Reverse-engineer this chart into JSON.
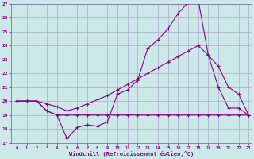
{
  "xlabel": "Windchill (Refroidissement éolien,°C)",
  "background_color": "#cce8e8",
  "line_color": "#880088",
  "grid_color": "#aaaacc",
  "xmin": 0,
  "xmax": 23,
  "ymin": 17,
  "ymax": 27,
  "s1_x": [
    0,
    1,
    2,
    3,
    4,
    5,
    6,
    7,
    8,
    9,
    10,
    11,
    12,
    13,
    14,
    15,
    16,
    17,
    18,
    19,
    20,
    21,
    22,
    23
  ],
  "s1_y": [
    20.0,
    20.0,
    20.0,
    19.3,
    19.0,
    17.3,
    18.1,
    18.3,
    18.2,
    18.5,
    20.5,
    20.8,
    21.5,
    23.8,
    24.4,
    25.2,
    26.3,
    27.1,
    27.3,
    23.3,
    21.0,
    19.5,
    19.5,
    19.0
  ],
  "s2_x": [
    0,
    1,
    2,
    3,
    4,
    5,
    6,
    7,
    8,
    9,
    10,
    11,
    12,
    13,
    14,
    15,
    16,
    17,
    18,
    19,
    20,
    21,
    22,
    23
  ],
  "s2_y": [
    20.0,
    20.0,
    20.0,
    19.3,
    19.0,
    19.0,
    19.0,
    19.0,
    19.0,
    19.0,
    19.0,
    19.0,
    19.0,
    19.0,
    19.0,
    19.0,
    19.0,
    19.0,
    19.0,
    19.0,
    19.0,
    19.0,
    19.0,
    19.0
  ],
  "s3_x": [
    0,
    1,
    2,
    3,
    4,
    5,
    6,
    7,
    8,
    9,
    10,
    11,
    12,
    13,
    14,
    15,
    16,
    17,
    18,
    19,
    20,
    21,
    22,
    23
  ],
  "s3_y": [
    20.0,
    20.0,
    20.0,
    19.8,
    19.6,
    19.3,
    19.5,
    19.8,
    20.1,
    20.4,
    20.8,
    21.2,
    21.6,
    22.0,
    22.4,
    22.8,
    23.2,
    23.6,
    24.0,
    23.3,
    22.5,
    21.0,
    20.5,
    19.0
  ]
}
